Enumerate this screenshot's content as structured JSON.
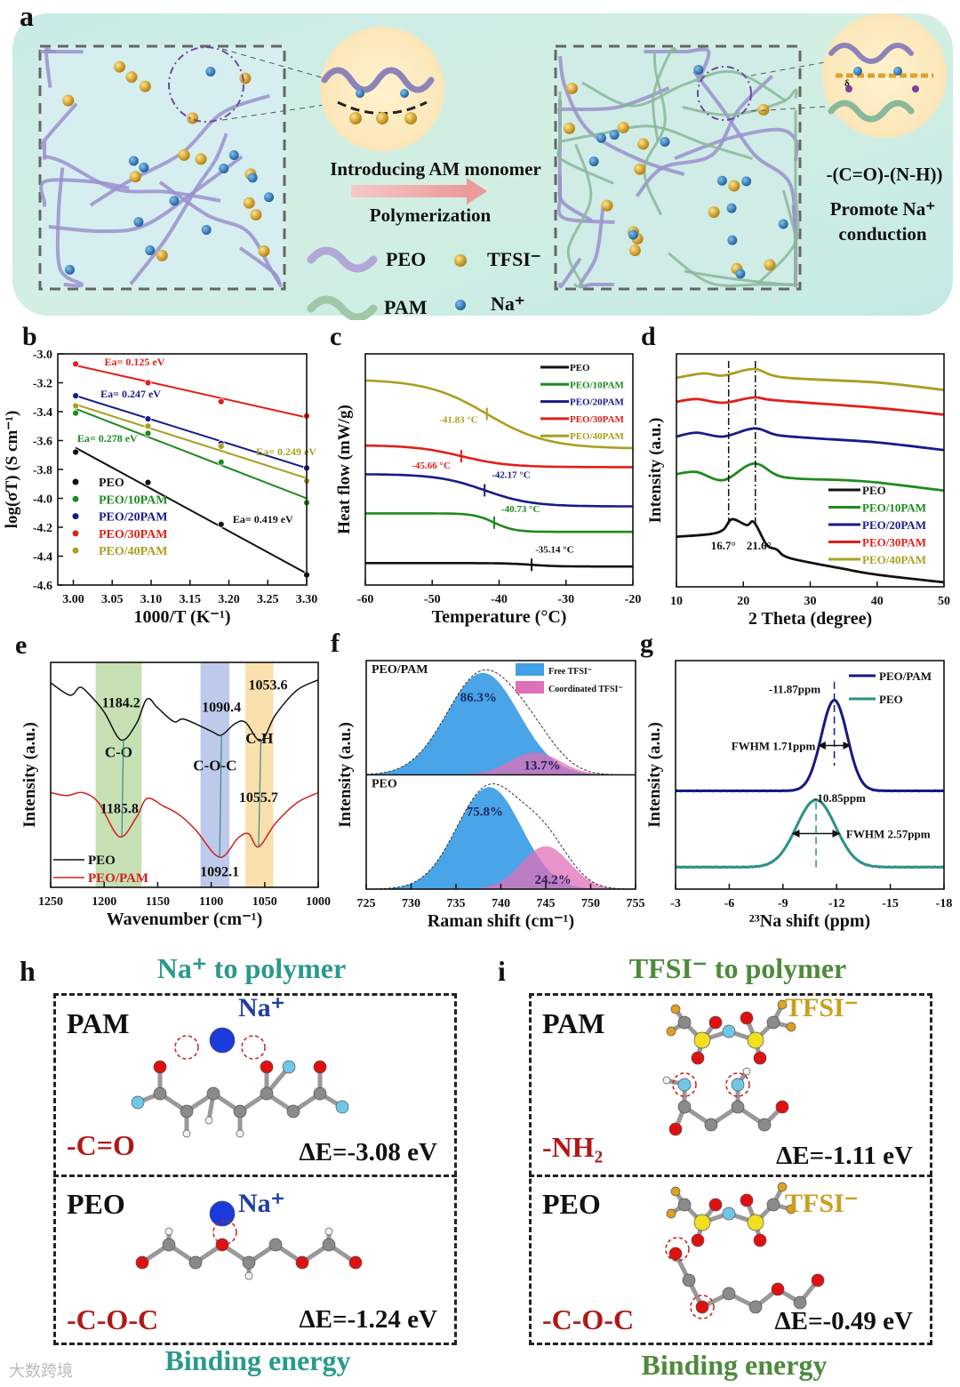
{
  "figure": {
    "panel_a": {
      "label": "a",
      "arrow_top": "Introducing AM monomer",
      "arrow_bottom": "Polymerization",
      "legend": [
        {
          "label": "PEO"
        },
        {
          "label": "TFSI⁻"
        },
        {
          "label": "PAM"
        },
        {
          "label": "Na⁺"
        }
      ],
      "group": "-(C=O)-(N-H))",
      "promote_line1": "Promote Na⁺",
      "promote_line2": "conduction",
      "delta": "δ"
    },
    "panel_h": {
      "label": "h",
      "title": "Na⁺ to polymer",
      "footer": "Binding energy",
      "rows": [
        {
          "polymer": "PAM",
          "ion": "Na⁺",
          "group": "-C=O",
          "energy": "ΔE=-3.08 eV"
        },
        {
          "polymer": "PEO",
          "ion": "Na⁺",
          "group": "-C-O-C",
          "energy": "ΔE=-1.24 eV"
        }
      ]
    },
    "panel_i": {
      "label": "i",
      "title": "TFSI⁻ to polymer",
      "footer": "Binding energy",
      "rows": [
        {
          "polymer": "PAM",
          "ion": "TFSI⁻",
          "group": "-NH₂",
          "energy": "ΔE=-1.11 eV"
        },
        {
          "polymer": "PEO",
          "ion": "TFSI⁻",
          "group": "-C-O-C",
          "energy": "ΔE=-0.49 eV"
        }
      ]
    },
    "watermark": "大数跨境"
  },
  "colors": {
    "peo": "#111111",
    "peo_10pam": "#1e8a1e",
    "peo_20pam": "#1a1a8a",
    "peo_30pam": "#e0201c",
    "peo_40pam": "#a8a020",
    "teal_title": "#2a9a8c",
    "green_title": "#4e8a3c",
    "group_red": "#b01818",
    "na_blue": "#2040a0",
    "tfsi_gold": "#c8a020",
    "free_tfsi": "#3fa0e6",
    "coord_tfsi": "#e070b8"
  },
  "chart_data": [
    {
      "panel_label": "b",
      "type": "scatter",
      "xlabel": "1000/T (K⁻¹)",
      "ylabel": "log(σT) (S cm⁻¹)",
      "xlim": [
        2.98,
        3.3
      ],
      "ylim": [
        -4.6,
        -3.0
      ],
      "xticks": [
        "3.00",
        "3.05",
        "3.10",
        "3.15",
        "3.20",
        "3.25",
        "3.30"
      ],
      "yticks": [
        "-3.0",
        "-3.2",
        "-3.4",
        "-3.6",
        "-3.8",
        "-4.0",
        "-4.2",
        "-4.4",
        "-4.6"
      ],
      "legend": "bottom-left",
      "series": [
        {
          "name": "PEO",
          "color": "#111111",
          "x": [
            3.003,
            3.096,
            3.19,
            3.3
          ],
          "y": [
            -3.68,
            -3.89,
            -4.18,
            -4.53
          ],
          "fit": [
            -3.65,
            -4.52
          ],
          "ea": "Ea= 0.419 eV"
        },
        {
          "name": "PEO/10PAM",
          "color": "#1e8a1e",
          "x": [
            3.003,
            3.096,
            3.19,
            3.3
          ],
          "y": [
            -3.41,
            -3.55,
            -3.75,
            -4.03
          ],
          "fit": [
            -3.38,
            -4.0
          ],
          "ea": "Ea= 0.278 eV"
        },
        {
          "name": "PEO/20PAM",
          "color": "#1a1a8a",
          "x": [
            3.003,
            3.096,
            3.19,
            3.3
          ],
          "y": [
            -3.29,
            -3.45,
            -3.62,
            -3.79
          ],
          "fit": [
            -3.29,
            -3.79
          ],
          "ea": "Ea= 0.247 eV"
        },
        {
          "name": "PEO/30PAM",
          "color": "#e0201c",
          "x": [
            3.003,
            3.096,
            3.19,
            3.3
          ],
          "y": [
            -3.07,
            -3.2,
            -3.33,
            -3.43
          ],
          "fit": [
            -3.08,
            -3.44
          ],
          "ea": "Ea= 0.125 eV"
        },
        {
          "name": "PEO/40PAM",
          "color": "#a8a020",
          "x": [
            3.003,
            3.096,
            3.19,
            3.3
          ],
          "y": [
            -3.36,
            -3.5,
            -3.64,
            -3.88
          ],
          "fit": [
            -3.35,
            -3.86
          ],
          "ea": "Ea= 0.249 eV"
        }
      ]
    },
    {
      "panel_label": "c",
      "type": "line",
      "xlabel": "Temperature (°C)",
      "ylabel": "Heat flow (mW/g)",
      "xlim": [
        -60,
        -20
      ],
      "ylim": [
        0,
        100
      ],
      "xticks": [
        "-60",
        "-50",
        "-40",
        "-30",
        "-20"
      ],
      "legend": "top-right",
      "series": [
        {
          "name": "PEO",
          "color": "#111111",
          "before": 9.5,
          "after": 8.0,
          "tg": -35.14,
          "width": 2,
          "tg_label": "-35.14 °C"
        },
        {
          "name": "PEO/10PAM",
          "color": "#1e8a1e",
          "before": 31,
          "after": 23,
          "tg": -40.73,
          "width": 1.5,
          "tg_label": "-40.73 °C"
        },
        {
          "name": "PEO/20PAM",
          "color": "#1a1a8a",
          "before": 48,
          "after": 34,
          "tg": -42.17,
          "width": 3.5,
          "tg_label": "-42.17 °C"
        },
        {
          "name": "PEO/30PAM",
          "color": "#e0201c",
          "before": 60.5,
          "after": 51,
          "tg": -45.66,
          "width": 3.5,
          "tg_label": "-45.66 °C"
        },
        {
          "name": "PEO/40PAM",
          "color": "#a8a020",
          "before": 89,
          "after": 59,
          "tg": -41.83,
          "width": 4.5,
          "tg_label": "-41.83 °C"
        }
      ]
    },
    {
      "panel_label": "d",
      "type": "line",
      "xlabel": "2 Theta (degree)",
      "ylabel": "Intensity (a.u.)",
      "xlim": [
        10,
        50
      ],
      "ylim": [
        0,
        100
      ],
      "xticks": [
        "10",
        "20",
        "30",
        "40",
        "50"
      ],
      "peak_labels": [
        "16.7°",
        "21.6°"
      ],
      "legend": "bottom-right",
      "series": [
        {
          "name": "PEO",
          "color": "#111111",
          "points": [
            [
              10,
              21.5
            ],
            [
              15,
              22.6
            ],
            [
              17,
              24.5
            ],
            [
              18.3,
              29
            ],
            [
              20.5,
              26.5
            ],
            [
              21.6,
              27.7
            ],
            [
              23.5,
              18
            ],
            [
              25,
              16
            ],
            [
              27,
              12.3
            ],
            [
              35,
              7.7
            ],
            [
              40,
              5.2
            ],
            [
              50,
              1.9
            ]
          ]
        },
        {
          "name": "PEO/10PAM",
          "color": "#1e8a1e",
          "points": [
            [
              10,
              48.4
            ],
            [
              13,
              49.3
            ],
            [
              17,
              45.8
            ],
            [
              21.6,
              52.9
            ],
            [
              26,
              47.1
            ],
            [
              35,
              45.8
            ],
            [
              40,
              44.8
            ],
            [
              50,
              41.3
            ]
          ]
        },
        {
          "name": "PEO/20PAM",
          "color": "#1a1a8a",
          "points": [
            [
              10,
              64.5
            ],
            [
              13,
              66.2
            ],
            [
              17,
              64.5
            ],
            [
              21.6,
              68
            ],
            [
              25,
              65.2
            ],
            [
              30,
              63.9
            ],
            [
              40,
              62
            ],
            [
              50,
              58.7
            ]
          ]
        },
        {
          "name": "PEO/30PAM",
          "color": "#e0201c",
          "points": [
            [
              10,
              79.4
            ],
            [
              13,
              80.6
            ],
            [
              17,
              79
            ],
            [
              21.6,
              81.3
            ],
            [
              25,
              80
            ],
            [
              40,
              76.8
            ],
            [
              50,
              73.9
            ]
          ]
        },
        {
          "name": "PEO/40PAM",
          "color": "#a8a020",
          "points": [
            [
              10,
              89.7
            ],
            [
              14,
              91.6
            ],
            [
              17,
              90.7
            ],
            [
              21.6,
              93.5
            ],
            [
              26,
              89.9
            ],
            [
              40,
              87.7
            ],
            [
              50,
              84.5
            ]
          ]
        }
      ]
    },
    {
      "panel_label": "e",
      "type": "line",
      "xlabel": "Wavenumber (cm⁻¹)",
      "ylabel": "Intensity (a.u.)",
      "xlim": [
        1250,
        1000
      ],
      "ylim": [
        0,
        100
      ],
      "xticks": [
        "1250",
        "1200",
        "1150",
        "1100",
        "1050",
        "1000"
      ],
      "legend": "bottom-left",
      "bands": [
        {
          "label": "C-O",
          "range": [
            1208,
            1165
          ],
          "color": "#a8d08c"
        },
        {
          "label": "C-O-C",
          "range": [
            1110,
            1083
          ],
          "color": "#9aaee0"
        },
        {
          "label": "C-H",
          "range": [
            1068,
            1042
          ],
          "color": "#f8d080"
        }
      ],
      "peaks": [
        {
          "label": "1184.2",
          "x": 1184.2,
          "series": 0
        },
        {
          "label": "1090.4",
          "x": 1090.4,
          "series": 0
        },
        {
          "label": "1053.6",
          "x": 1053.6,
          "series": 0
        },
        {
          "label": "1185.8",
          "x": 1185.8,
          "series": 1
        },
        {
          "label": "1092.1",
          "x": 1092.1,
          "series": 1
        },
        {
          "label": "1055.7",
          "x": 1055.7,
          "series": 1
        }
      ],
      "series": [
        {
          "name": "PEO",
          "color": "#111111",
          "points": [
            [
              1250,
              90.9
            ],
            [
              1232,
              85.4
            ],
            [
              1223,
              88.9
            ],
            [
              1215,
              86.3
            ],
            [
              1200,
              77.9
            ],
            [
              1184.2,
              65.5
            ],
            [
              1170,
              72.7
            ],
            [
              1160,
              83.7
            ],
            [
              1150,
              79.8
            ],
            [
              1135,
              73.7
            ],
            [
              1125,
              74.7
            ],
            [
              1100,
              69.4
            ],
            [
              1090.4,
              67.7
            ],
            [
              1078,
              72.7
            ],
            [
              1068,
              73.4
            ],
            [
              1053.6,
              65.1
            ],
            [
              1040,
              76.6
            ],
            [
              1020,
              87.6
            ],
            [
              1000,
              92.2
            ]
          ]
        },
        {
          "name": "PEO/PAM",
          "color": "#d42020",
          "points": [
            [
              1250,
              42.1
            ],
            [
              1235,
              40.8
            ],
            [
              1220,
              42.1
            ],
            [
              1205,
              37.5
            ],
            [
              1185.8,
              22.5
            ],
            [
              1170,
              31
            ],
            [
              1160,
              39.5
            ],
            [
              1145,
              36.2
            ],
            [
              1130,
              32.3
            ],
            [
              1115,
              25.8
            ],
            [
              1092.1,
              13.4
            ],
            [
              1075,
              21.9
            ],
            [
              1065,
              23.8
            ],
            [
              1055.7,
              18
            ],
            [
              1040,
              28.4
            ],
            [
              1020,
              37.5
            ],
            [
              1000,
              42.1
            ]
          ]
        }
      ]
    },
    {
      "panel_label": "f",
      "type": "area",
      "xlabel": "Raman shift (cm⁻¹)",
      "ylabel": "Intensity (a.u.)",
      "xlim": [
        725,
        755
      ],
      "ylim": [
        0,
        1.1
      ],
      "xticks": [
        "725",
        "730",
        "735",
        "740",
        "745",
        "750",
        "755"
      ],
      "legend_entries": [
        "Free TFSI⁻",
        "Coordinated TFSI⁻"
      ],
      "legend": "top-right",
      "subplots": [
        {
          "name": "PEO/PAM",
          "free": {
            "center": 738.0,
            "sigma": 4.0,
            "amplitude": 1.0,
            "percent": "86.3%"
          },
          "coordinated": {
            "center": 743.8,
            "sigma": 2.8,
            "amplitude": 0.22,
            "percent": "13.7%"
          }
        },
        {
          "name": "PEO",
          "free": {
            "center": 738.7,
            "sigma": 3.6,
            "amplitude": 1.0,
            "percent": "75.8%"
          },
          "coordinated": {
            "center": 745.0,
            "sigma": 2.7,
            "amplitude": 0.42,
            "percent": "24.2%"
          }
        }
      ]
    },
    {
      "panel_label": "g",
      "type": "line",
      "xlabel": "²³Na shift (ppm)",
      "ylabel": "Intensity (a.u.)",
      "xlim": [
        -3,
        -18
      ],
      "ylim": [
        0,
        100
      ],
      "xticks": [
        "-3",
        "-6",
        "-9",
        "-12",
        "-15",
        "-18"
      ],
      "legend": "top-right",
      "series": [
        {
          "name": "PEO/PAM",
          "color": "#161a80",
          "center": -11.87,
          "fwhm": 1.71,
          "baseline": 43,
          "peak": 82.7,
          "center_label": "-11.87ppm",
          "fwhm_label": "FWHM 1.71ppm"
        },
        {
          "name": "PEO",
          "color": "#2a9088",
          "center": -10.85,
          "fwhm": 2.57,
          "baseline": 9.6,
          "peak": 39,
          "center_label": "-10.85ppm",
          "fwhm_label": "FWHM 2.57ppm"
        }
      ]
    }
  ]
}
